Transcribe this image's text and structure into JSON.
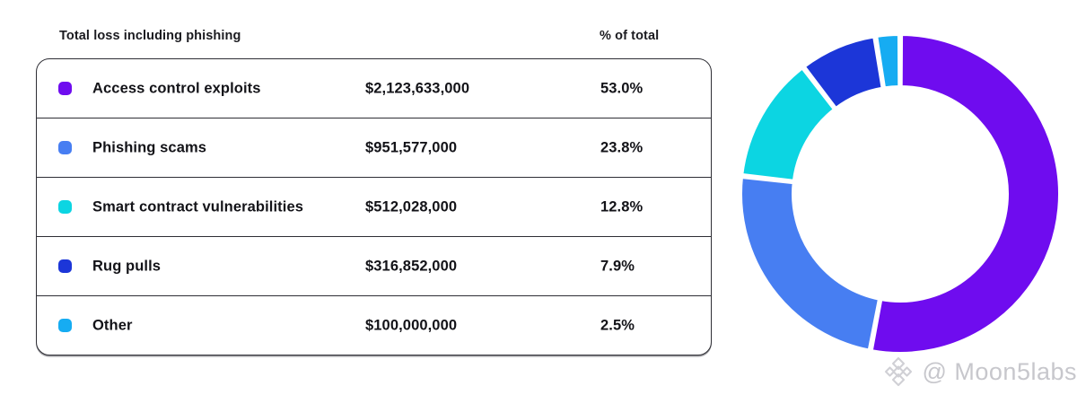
{
  "table": {
    "header": {
      "title": "Total loss including phishing",
      "percent_label": "% of total"
    },
    "rows": [
      {
        "label": "Access control exploits",
        "amount": "$2,123,633,000",
        "percent": "53.0%",
        "color": "#6F0CEF"
      },
      {
        "label": "Phishing scams",
        "amount": "$951,577,000",
        "percent": "23.8%",
        "color": "#477EF2"
      },
      {
        "label": "Smart contract vulnerabilities",
        "amount": "$512,028,000",
        "percent": "12.8%",
        "color": "#0CD5E2"
      },
      {
        "label": "Rug pulls",
        "amount": "$316,852,000",
        "percent": "7.9%",
        "color": "#1C36D8"
      },
      {
        "label": "Other",
        "amount": "$100,000,000",
        "percent": "2.5%",
        "color": "#16ACF2"
      }
    ]
  },
  "chart_data": {
    "type": "pie",
    "variant": "donut",
    "title": "Total loss including phishing",
    "categories": [
      "Access control exploits",
      "Phishing scams",
      "Smart contract vulnerabilities",
      "Rug pulls",
      "Other"
    ],
    "values": [
      53.0,
      23.8,
      12.8,
      7.9,
      2.5
    ],
    "amounts_usd": [
      2123633000,
      951577000,
      512028000,
      316852000,
      100000000
    ],
    "colors": [
      "#6F0CEF",
      "#477EF2",
      "#0CD5E2",
      "#1C36D8",
      "#16ACF2"
    ],
    "start_angle_deg": 0,
    "direction": "clockwise",
    "legend_position": "left-table",
    "gap_color": "#ffffff"
  },
  "watermark": {
    "text": "@ Moon5labs"
  }
}
